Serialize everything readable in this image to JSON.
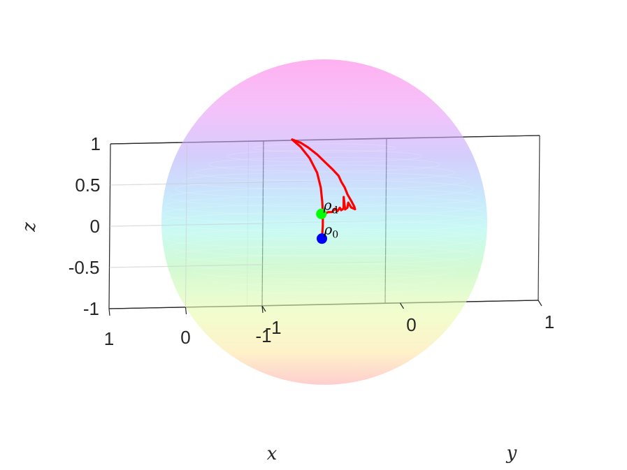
{
  "chart_data": {
    "type": "scatter",
    "title": "",
    "axes": {
      "x": {
        "label": "x",
        "lim": [
          -1,
          1
        ],
        "tick_labels": [
          "1",
          "0",
          "-1"
        ]
      },
      "y": {
        "label": "y",
        "lim": [
          -1,
          1
        ],
        "tick_labels": [
          "1",
          "0",
          "-1"
        ]
      },
      "z": {
        "label": "z",
        "lim": [
          -1,
          1
        ],
        "tick_labels": [
          "1",
          "0.5",
          "0",
          "-0.5",
          "-1"
        ]
      }
    },
    "grid": true,
    "box": true,
    "surface": {
      "name": "Bloch sphere",
      "radius": 1,
      "colormap": "hsv",
      "opacity": 0.3
    },
    "trajectory": {
      "color": "#ff0000",
      "points": [
        [
          0.03,
          0.0,
          -0.2
        ],
        [
          0.02,
          0.0,
          -0.05
        ],
        [
          0.02,
          0.0,
          0.1
        ],
        [
          0.03,
          0.0,
          0.25
        ],
        [
          0.05,
          0.0,
          0.42
        ],
        [
          0.1,
          0.0,
          0.6
        ],
        [
          0.2,
          0.0,
          0.78
        ],
        [
          0.32,
          0.0,
          0.92
        ],
        [
          0.42,
          0.0,
          1.0
        ],
        [
          0.43,
          0.0,
          1.01
        ],
        [
          0.32,
          0.0,
          0.97
        ],
        [
          0.22,
          0.0,
          0.91
        ],
        [
          0.1,
          0.0,
          0.82
        ],
        [
          0.0,
          0.0,
          0.73
        ],
        [
          -0.1,
          0.0,
          0.64
        ],
        [
          -0.18,
          0.0,
          0.56
        ],
        [
          -0.22,
          0.0,
          0.48
        ],
        [
          -0.26,
          0.0,
          0.42
        ],
        [
          -0.3,
          0.0,
          0.33
        ],
        [
          -0.35,
          0.0,
          0.25
        ],
        [
          -0.39,
          0.0,
          0.18
        ],
        [
          -0.4,
          0.0,
          0.15
        ],
        [
          -0.35,
          0.0,
          0.17
        ],
        [
          -0.31,
          0.0,
          0.23
        ],
        [
          -0.3,
          0.0,
          0.17
        ],
        [
          -0.27,
          0.0,
          0.15
        ],
        [
          -0.25,
          0.0,
          0.3
        ],
        [
          -0.25,
          0.0,
          0.16
        ],
        [
          -0.22,
          0.0,
          0.14
        ],
        [
          -0.2,
          0.0,
          0.17
        ],
        [
          -0.17,
          0.0,
          0.13
        ],
        [
          -0.14,
          0.0,
          0.16
        ],
        [
          -0.1,
          0.0,
          0.12
        ],
        [
          -0.05,
          0.0,
          0.12
        ],
        [
          0.0,
          0.0,
          0.1
        ],
        [
          0.04,
          0.0,
          0.1
        ]
      ]
    },
    "markers": [
      {
        "name": "rho_0",
        "label": "ρ",
        "subscript": "0",
        "color": "#0000ff",
        "point": [
          0.03,
          0.0,
          -0.2
        ]
      },
      {
        "name": "rho_d",
        "label": "ρ",
        "subscript": "d",
        "color": "#00ff00",
        "point": [
          0.04,
          0.0,
          0.1
        ]
      }
    ]
  }
}
